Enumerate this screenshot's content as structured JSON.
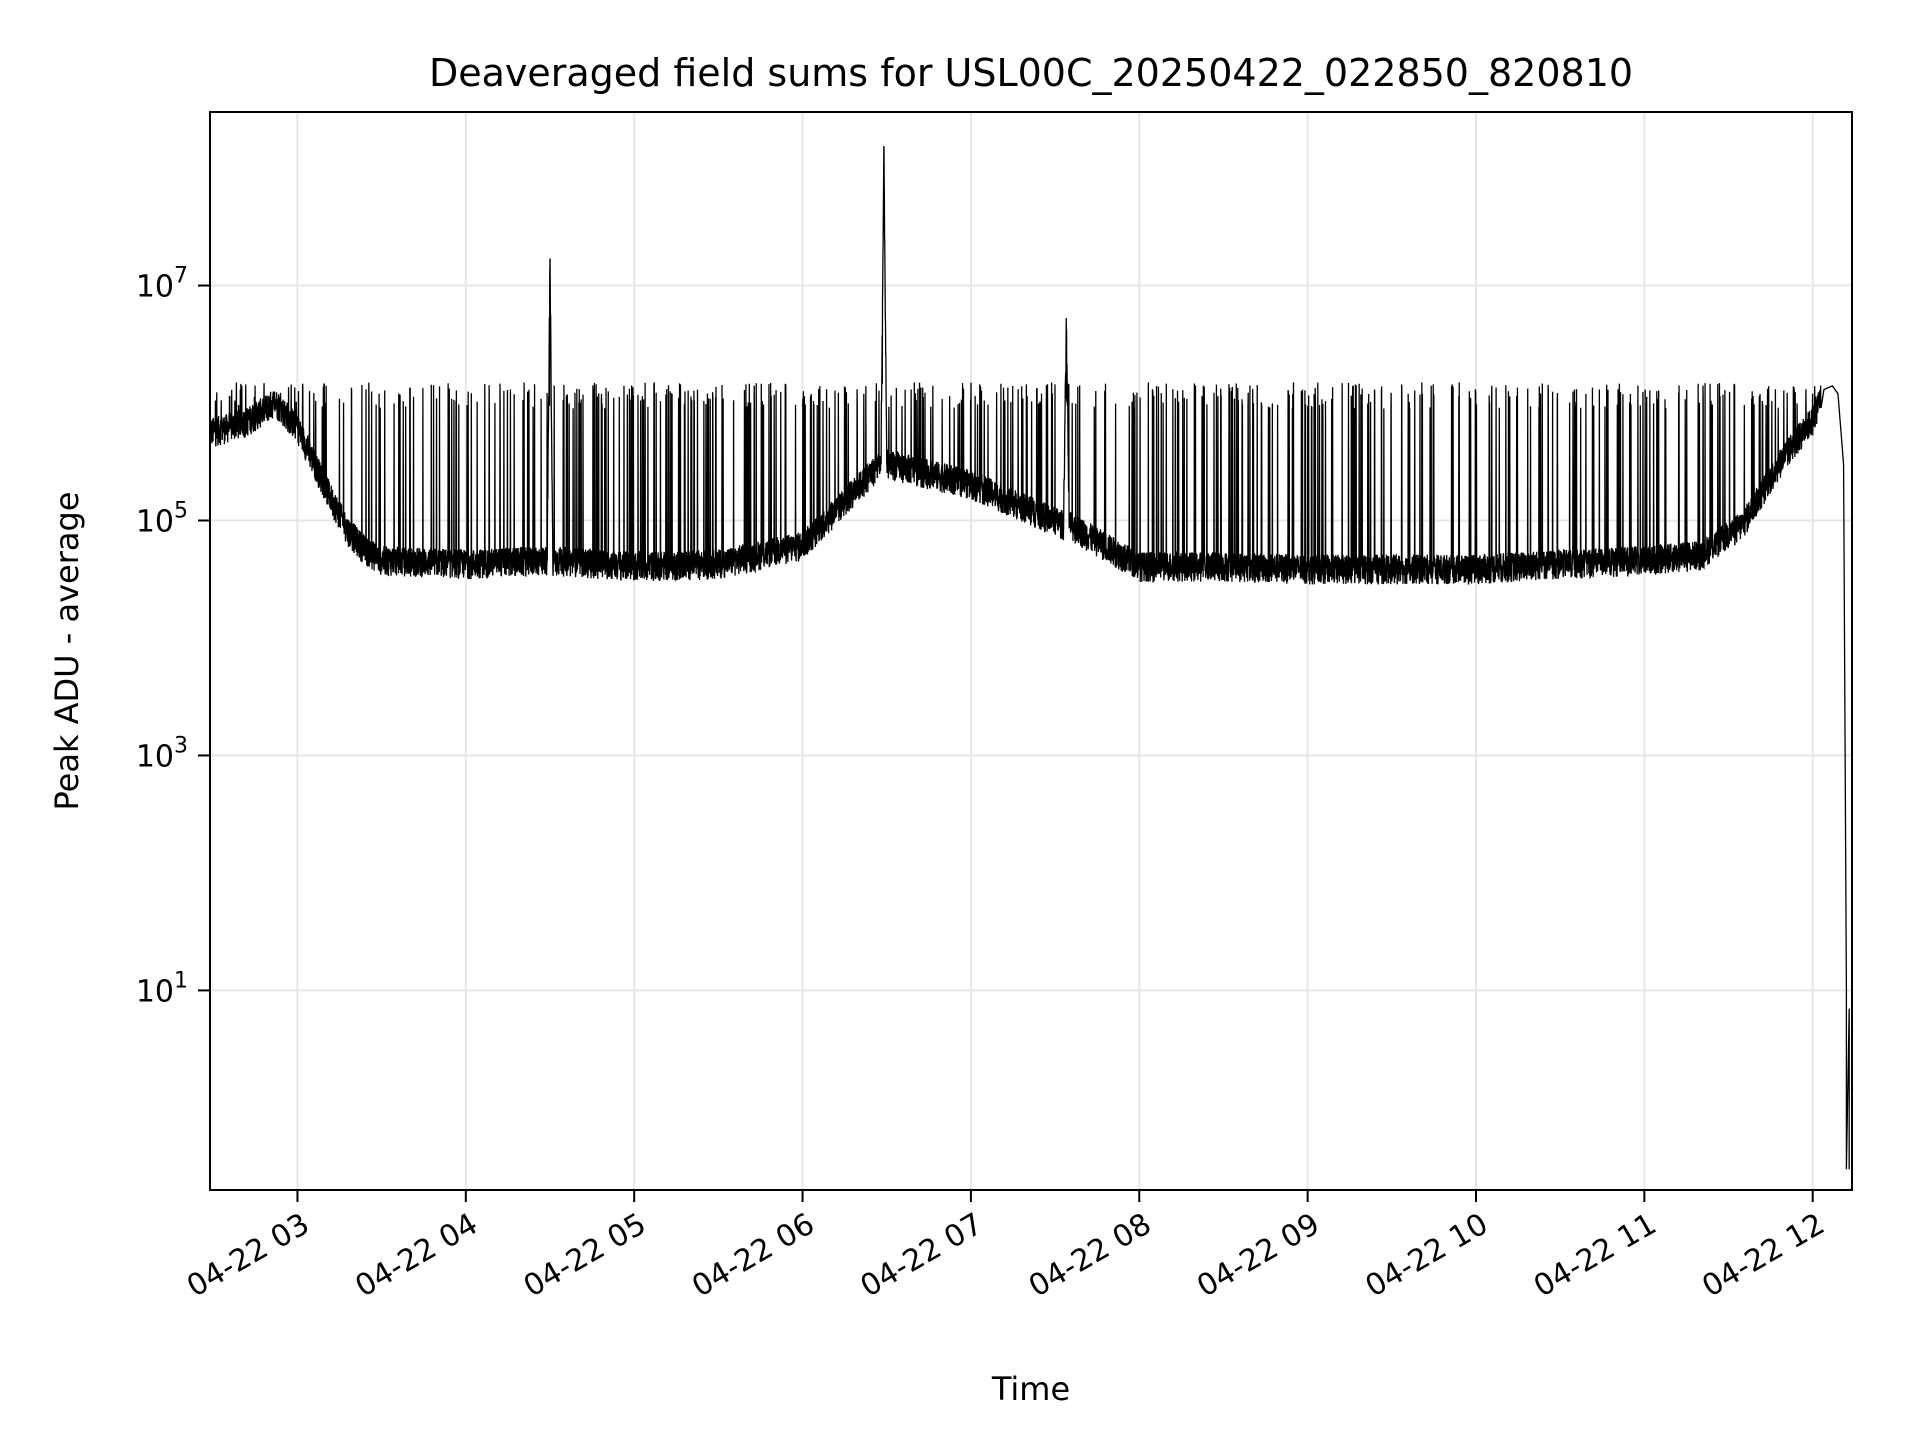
{
  "chart_data": {
    "type": "line",
    "title": "Deaveraged field sums for USL00C_20250422_022850_820810",
    "xlabel": "Time",
    "ylabel": "Peak ADU - average",
    "x_axis_kind": "datetime",
    "xlim": [
      "2025-04-22 02:28:50",
      "2025-04-22 12:14:00"
    ],
    "x_ticks": [
      "04-22 03",
      "04-22 04",
      "04-22 05",
      "04-22 06",
      "04-22 07",
      "04-22 08",
      "04-22 09",
      "04-22 10",
      "04-22 11",
      "04-22 12"
    ],
    "y_scale": "log",
    "ylim": [
      0.2,
      300000000
    ],
    "y_ticks": [
      {
        "base": "10",
        "exp": "1"
      },
      {
        "base": "10",
        "exp": "3"
      },
      {
        "base": "10",
        "exp": "5"
      },
      {
        "base": "10",
        "exp": "7"
      }
    ],
    "y_tick_values": [
      10,
      1000,
      100000,
      10000000
    ],
    "grid": true,
    "line_color": "#000000",
    "series": [
      {
        "x": [
          "2025-04-22 02:28:50",
          "2025-04-22 02:35",
          "2025-04-22 02:42",
          "2025-04-22 02:48",
          "2025-04-22 02:52",
          "2025-04-22 03:00",
          "2025-04-22 03:06",
          "2025-04-22 03:12",
          "2025-04-22 03:18",
          "2025-04-22 03:24",
          "2025-04-22 03:30",
          "2025-04-22 04:00",
          "2025-04-22 04:29",
          "2025-04-22 04:30",
          "2025-04-22 04:31",
          "2025-04-22 05:00",
          "2025-04-22 05:30",
          "2025-04-22 06:00",
          "2025-04-22 06:28",
          "2025-04-22 06:29",
          "2025-04-22 06:30",
          "2025-04-22 07:00",
          "2025-04-22 07:33",
          "2025-04-22 07:34",
          "2025-04-22 07:35",
          "2025-04-22 08:00",
          "2025-04-22 08:30",
          "2025-04-22 09:00",
          "2025-04-22 09:30",
          "2025-04-22 10:00",
          "2025-04-22 10:30",
          "2025-04-22 11:00",
          "2025-04-22 11:20",
          "2025-04-22 11:35",
          "2025-04-22 11:50",
          "2025-04-22 12:00",
          "2025-04-22 12:04",
          "2025-04-22 12:07",
          "2025-04-22 12:09",
          "2025-04-22 12:11",
          "2025-04-22 12:12",
          "2025-04-22 12:12",
          "2025-04-22 12:13",
          "2025-04-22 12:13"
        ],
        "y": [
          550000,
          600000,
          680000,
          850000,
          1000000,
          600000,
          300000,
          150000,
          80000,
          55000,
          45000,
          42000,
          45000,
          17000000,
          45000,
          40000,
          42000,
          60000,
          300000,
          140000000,
          300000,
          200000,
          90000,
          4500000,
          90000,
          40000,
          40000,
          38000,
          38000,
          38000,
          42000,
          45000,
          50000,
          90000,
          350000,
          700000,
          1300000,
          1400000,
          1200000,
          300000,
          10,
          0.3,
          7,
          0.3
        ],
        "y_noise_band": [
          0.75,
          1.35
        ],
        "spike_max": 1500000
      }
    ]
  }
}
